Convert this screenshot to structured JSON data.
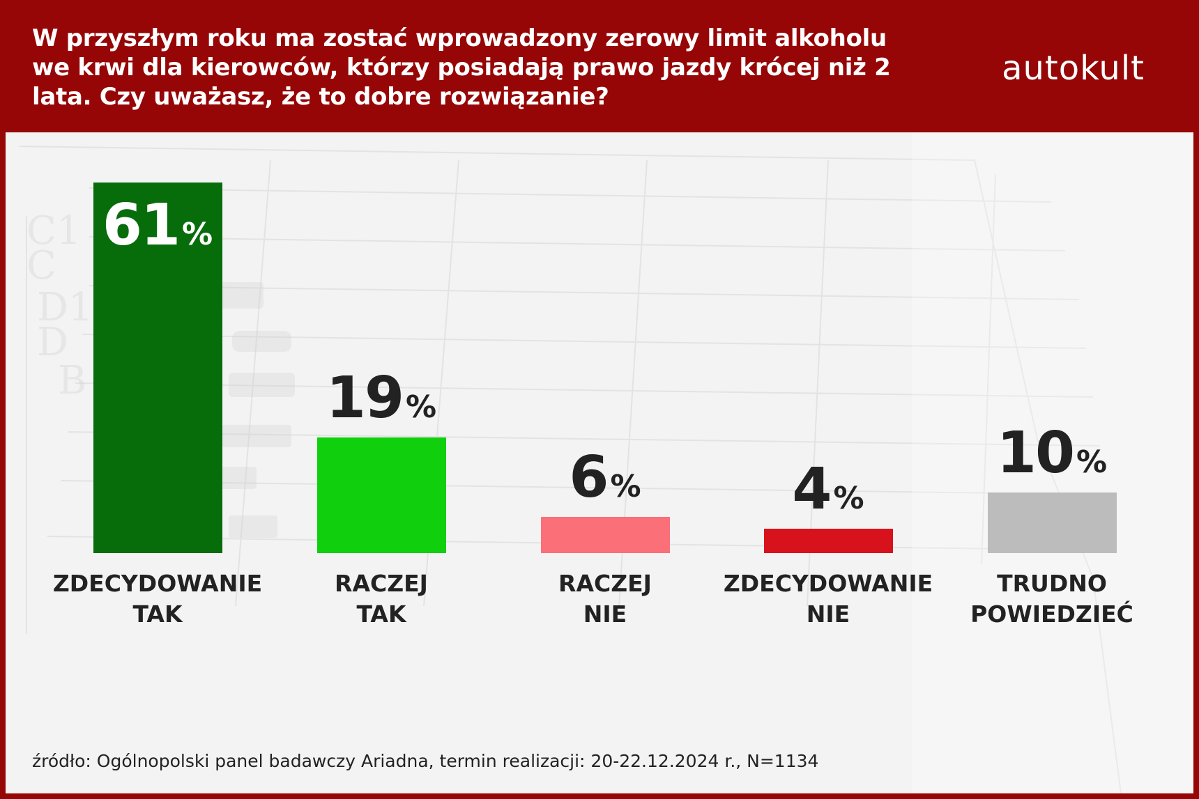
{
  "header": {
    "title": "W przyszłym roku ma zostać wprowadzony zerowy limit alkoholu we krwi dla kierowców, którzy posiadają prawo jazdy krócej niż 2 lata. Czy uważasz, że to dobre rozwiązanie?",
    "logo": "autokult"
  },
  "source": "źródło: Ogólnopolski panel badawczy Ariadna, termin realizacji: 20-22.12.2024 r., N=1134",
  "chart_data": {
    "type": "bar",
    "categories": [
      [
        "ZDECYDOWANIE",
        "TAK"
      ],
      [
        "RACZEJ",
        "TAK"
      ],
      [
        "RACZEJ",
        "NIE"
      ],
      [
        "ZDECYDOWANIE",
        "NIE"
      ],
      [
        "TRUDNO",
        "POWIEDZIEĆ"
      ]
    ],
    "values": [
      61,
      19,
      6,
      4,
      10
    ],
    "value_labels": [
      "61",
      "19",
      "6",
      "4",
      "10"
    ],
    "unit": "%",
    "colors": [
      "#066d0a",
      "#10d00e",
      "#fb6f78",
      "#d8121d",
      "#bcbcbc"
    ],
    "value_label_colors": [
      "#ffffff",
      "#222222",
      "#222222",
      "#222222",
      "#222222"
    ],
    "value_label_position": [
      "inside",
      "above",
      "above",
      "above",
      "above"
    ],
    "ylim": [
      0,
      61
    ],
    "grid": false
  }
}
